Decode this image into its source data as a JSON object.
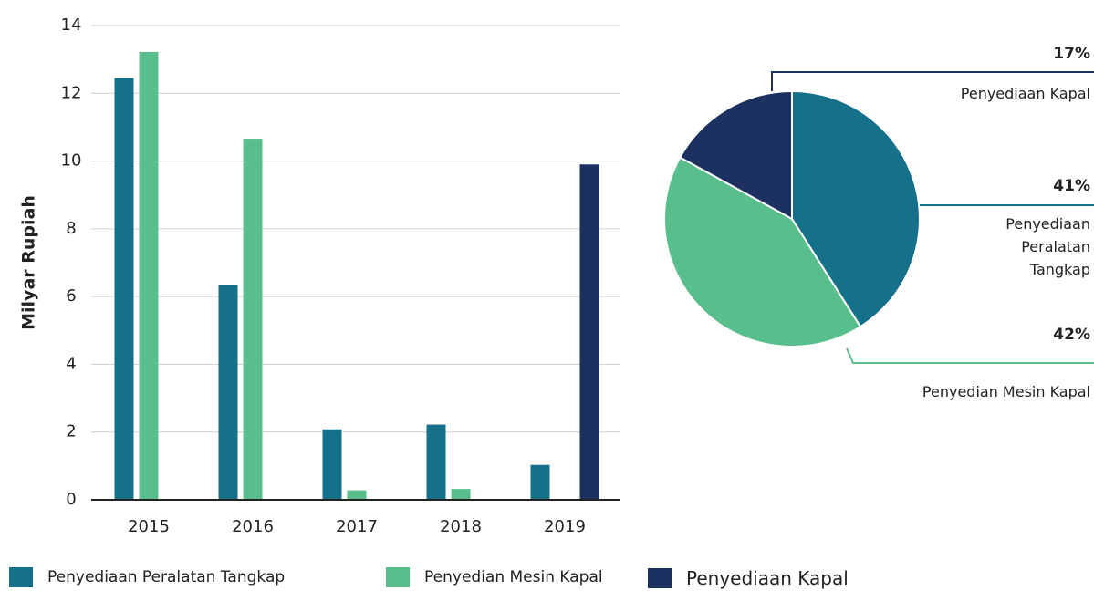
{
  "chart_data": [
    {
      "type": "bar",
      "ylabel": "Milyar Rupiah",
      "categories": [
        "2015",
        "2016",
        "2017",
        "2018",
        "2019"
      ],
      "series": [
        {
          "name": "Penyediaan Peralatan Tangkap",
          "color": "#15708a",
          "values": [
            12.45,
            6.35,
            2.08,
            2.22,
            1.03
          ]
        },
        {
          "name": "Penyedian Mesin Kapal",
          "color": "#58bf8c",
          "values": [
            13.22,
            10.66,
            0.28,
            0.32,
            null
          ]
        },
        {
          "name": "Penyediaan Kapal",
          "color": "#1c3160",
          "values": [
            null,
            null,
            null,
            null,
            9.9
          ]
        }
      ],
      "ylim": [
        0,
        14
      ],
      "yticks": [
        0,
        2,
        4,
        6,
        8,
        10,
        12,
        14
      ],
      "grid": true
    },
    {
      "type": "pie",
      "categories": [
        "Penyediaan Peralatan Tangkap",
        "Penyedian Mesin Kapal",
        "Penyediaan Kapal"
      ],
      "values": [
        41,
        42,
        17
      ],
      "value_labels": [
        "41%",
        "42%",
        "17%"
      ],
      "colors": [
        "#15708a",
        "#58bf8c",
        "#1c3160"
      ]
    }
  ]
}
